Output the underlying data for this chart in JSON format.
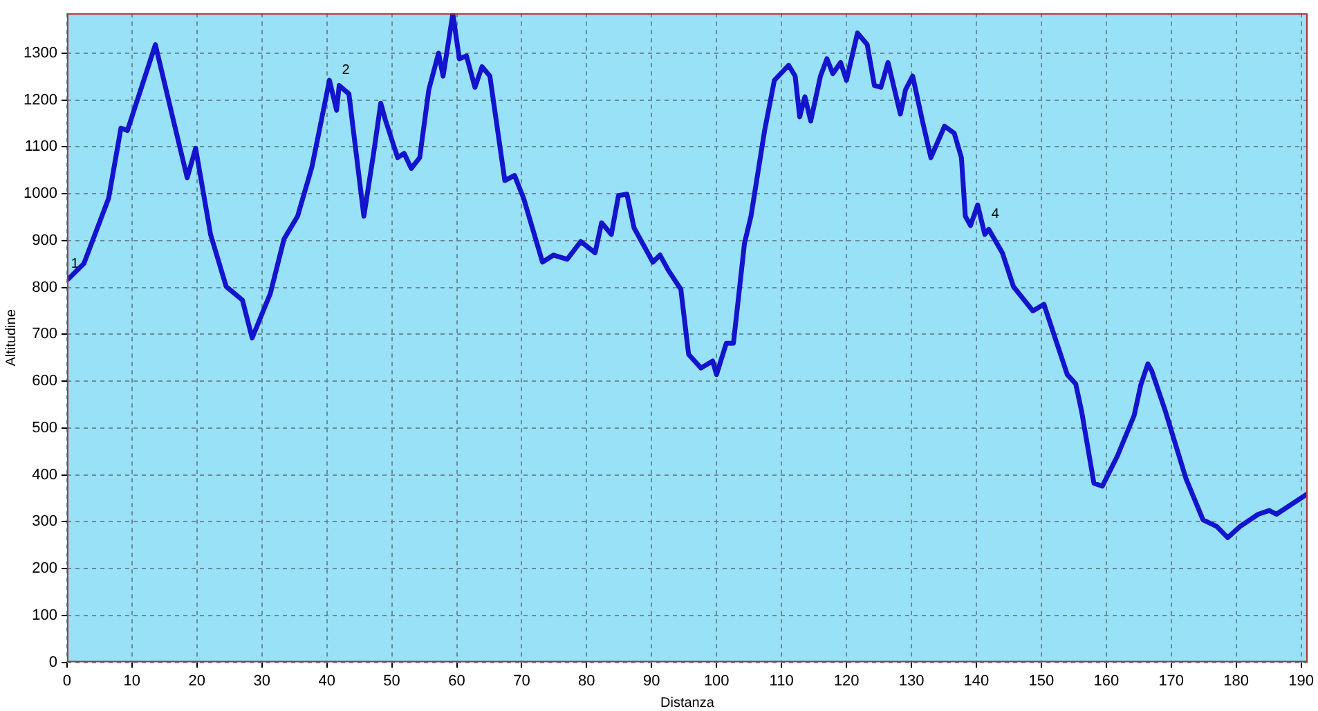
{
  "chart_data": {
    "type": "line",
    "xlabel": "Distanza",
    "ylabel": "Altitudine",
    "xlim": [
      0,
      191
    ],
    "ylim": [
      0,
      1385
    ],
    "xticks": [
      0,
      10,
      20,
      30,
      40,
      50,
      60,
      70,
      80,
      90,
      100,
      110,
      120,
      130,
      140,
      150,
      160,
      170,
      180,
      190
    ],
    "yticks": [
      0,
      100,
      200,
      300,
      400,
      500,
      600,
      700,
      800,
      900,
      1000,
      1100,
      1200,
      1300
    ],
    "grid": true,
    "legend": false,
    "marker": "none",
    "line_style": "solid",
    "annotations": [
      {
        "text": "1",
        "x": 0.2,
        "y": 818
      },
      {
        "text": "2",
        "x": 41.9,
        "y": 1231
      },
      {
        "text": "4",
        "x": 141.9,
        "y": 924
      }
    ],
    "series": [
      {
        "color": "#1414cc",
        "x": [
          0.2,
          2.6,
          6.4,
          8.3,
          9.3,
          13.6,
          16.4,
          18.5,
          19.8,
          22.1,
          24.5,
          27,
          28.5,
          31.3,
          33.4,
          35.5,
          37.7,
          40.4,
          41.5,
          41.9,
          43.4,
          45.7,
          47.2,
          48.3,
          49,
          50.9,
          51.9,
          53,
          54.3,
          55.7,
          57.2,
          57.9,
          59.4,
          60.4,
          61.5,
          62.8,
          63.9,
          65.1,
          67.4,
          68.9,
          70.3,
          73.2,
          74.9,
          77,
          79.1,
          81.3,
          82.3,
          83.8,
          84.9,
          86.2,
          87.3,
          90.2,
          91.3,
          92.6,
          94.5,
          95.7,
          97.6,
          99.4,
          100,
          101.5,
          102.6,
          104.3,
          105.3,
          107.4,
          108.9,
          111.1,
          112.1,
          112.8,
          113.6,
          114.5,
          116,
          117,
          117.9,
          119.1,
          120,
          121.7,
          123.2,
          124.3,
          125.3,
          126.4,
          128.3,
          129.1,
          130.2,
          131.7,
          133,
          135.1,
          136.6,
          137.7,
          138.3,
          139.1,
          140.2,
          141.3,
          141.9,
          144,
          145.7,
          148.7,
          150.4,
          154,
          155.3,
          156.2,
          158.1,
          159.4,
          161.7,
          164.3,
          165.3,
          166.4,
          167,
          169.1,
          172.3,
          174.9,
          177,
          178.7,
          180.6,
          183.4,
          185.1,
          186.2,
          190.9
        ],
        "values": [
          818,
          851,
          990,
          1140,
          1135,
          1318,
          1155,
          1034,
          1097,
          913,
          802,
          773,
          692,
          787,
          903,
          952,
          1057,
          1242,
          1178,
          1231,
          1213,
          952,
          1086,
          1193,
          1158,
          1077,
          1086,
          1054,
          1077,
          1222,
          1300,
          1251,
          1384,
          1288,
          1294,
          1227,
          1271,
          1251,
          1028,
          1039,
          990,
          854,
          869,
          860,
          898,
          874,
          938,
          913,
          996,
          999,
          927,
          854,
          869,
          836,
          796,
          657,
          628,
          643,
          614,
          681,
          681,
          894,
          952,
          1135,
          1242,
          1274,
          1251,
          1164,
          1207,
          1155,
          1251,
          1288,
          1256,
          1280,
          1242,
          1343,
          1318,
          1231,
          1227,
          1280,
          1170,
          1222,
          1251,
          1155,
          1077,
          1144,
          1129,
          1077,
          952,
          932,
          976,
          913,
          924,
          874,
          802,
          750,
          764,
          614,
          594,
          536,
          382,
          376,
          440,
          527,
          591,
          637,
          622,
          536,
          391,
          304,
          290,
          266,
          290,
          316,
          324,
          316,
          359
        ]
      }
    ]
  }
}
